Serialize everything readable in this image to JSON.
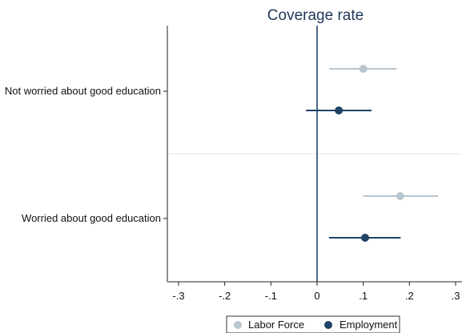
{
  "chart_data": {
    "type": "scatter",
    "title": "Coverage rate",
    "categories": [
      "Not worried about good education",
      "Worried about good education"
    ],
    "x_ticks": [
      -0.3,
      -0.2,
      -0.1,
      0,
      0.1,
      0.2,
      0.3
    ],
    "x_tick_labels": [
      "-.3",
      "-.2",
      "-.1",
      "0",
      ".1",
      ".2",
      ".3"
    ],
    "xlim": [
      -0.32,
      0.31
    ],
    "reference_line_x": 0,
    "series": [
      {
        "name": "Labor Force",
        "color": "#b9c6cf",
        "points": [
          {
            "category": "Not worried about good education",
            "estimate": 0.1,
            "ci_low": 0.026,
            "ci_high": 0.172
          },
          {
            "category": "Worried about good education",
            "estimate": 0.18,
            "ci_low": 0.1,
            "ci_high": 0.262
          }
        ]
      },
      {
        "name": "Employment",
        "color": "#1f4266",
        "points": [
          {
            "category": "Not worried about good education",
            "estimate": 0.047,
            "ci_low": -0.024,
            "ci_high": 0.118
          },
          {
            "category": "Worried about good education",
            "estimate": 0.104,
            "ci_low": 0.026,
            "ci_high": 0.181
          }
        ]
      }
    ],
    "legend_position": "bottom",
    "grid": false,
    "separator_line": true
  },
  "colors": {
    "title": "#1f3557",
    "axis": "#222222",
    "reference_line": "#1f4266",
    "separator": "#e6e6e6"
  }
}
